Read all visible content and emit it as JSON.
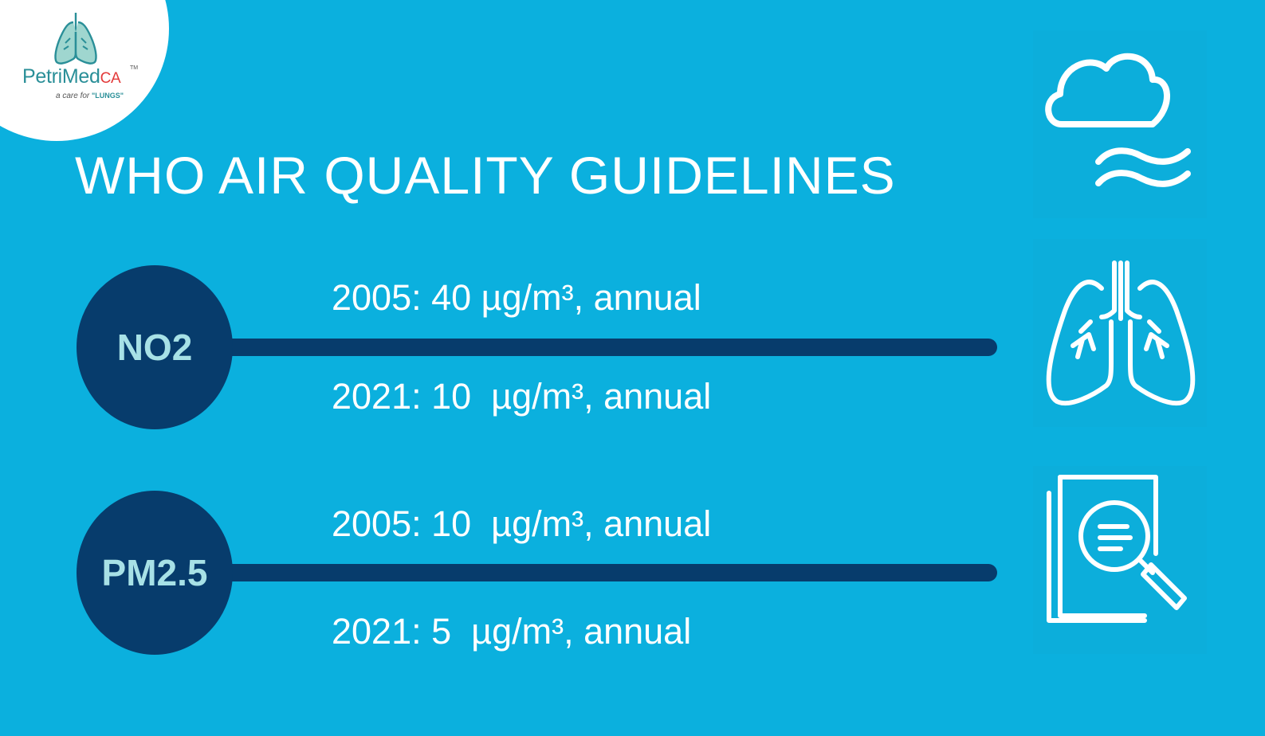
{
  "logo": {
    "name": "PetriMed",
    "suffix": "CA",
    "trademark": "TM",
    "tagline_prefix": "a care for",
    "tagline_emphasis": "\"LUNGS\""
  },
  "title": "WHO AIR QUALITY GUIDELINES",
  "pollutants": [
    {
      "label": "NO2",
      "values": [
        "2005: 40 µg/m³, annual",
        "2021: 10  µg/m³, annual"
      ]
    },
    {
      "label": "PM2.5",
      "values": [
        "2005: 10  µg/m³, annual",
        "2021: 5  µg/m³, annual"
      ]
    }
  ],
  "icons": [
    "cloud-wind-icon",
    "lungs-icon",
    "document-search-icon"
  ],
  "colors": {
    "background": "#0bb0de",
    "dark_navy": "#073c6c",
    "pale_teal": "#a7e1e6",
    "white": "#ffffff"
  }
}
